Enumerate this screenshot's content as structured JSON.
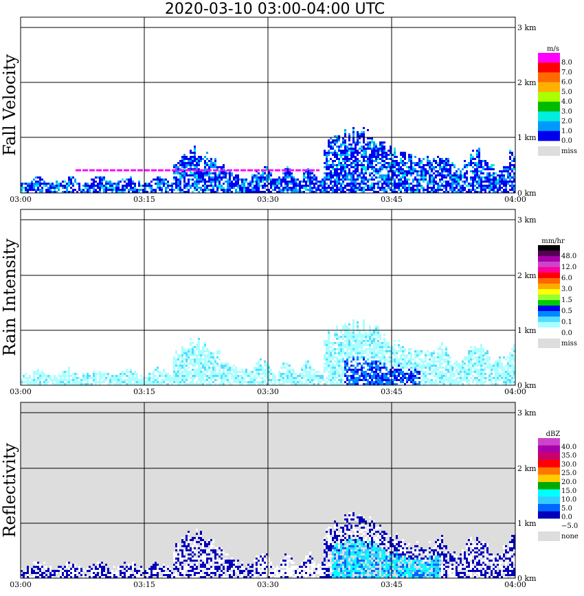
{
  "title": "2020-03-10   03:00-04:00 UTC",
  "chart_data": [
    {
      "type": "heatmap",
      "panel_title": "Fall Velocity",
      "x_tick_labels": [
        "03:00",
        "03:15",
        "03:30",
        "03:45",
        "04:00"
      ],
      "y_tick_labels": [
        "0 km",
        "1 km",
        "2 km",
        "3 km"
      ],
      "xlim": [
        "03:00",
        "04:00"
      ],
      "ylim_km": [
        0,
        3.1
      ],
      "grid": true,
      "colorbar": {
        "unit": "m/s",
        "levels": [
          "8.0",
          "7.0",
          "6.0",
          "5.0",
          "4.0",
          "3.0",
          "2.0",
          "1.0",
          "0.0"
        ],
        "colors": [
          "#ff00ff",
          "#ff0000",
          "#ff6a00",
          "#ffb000",
          "#aaff00",
          "#00bb00",
          "#00eedd",
          "#0099ff",
          "#0000ee"
        ],
        "missing_label": "miss",
        "missing_color": "#dddddd"
      },
      "background": "#ffffff"
    },
    {
      "type": "heatmap",
      "panel_title": "Rain Intensity",
      "x_tick_labels": [
        "03:00",
        "03:15",
        "03:30",
        "03:45",
        "04:00"
      ],
      "y_tick_labels": [
        "0 km",
        "1 km",
        "2 km",
        "3 km"
      ],
      "xlim": [
        "03:00",
        "04:00"
      ],
      "ylim_km": [
        0,
        3.1
      ],
      "grid": true,
      "colorbar": {
        "unit": "mm/hr",
        "levels": [
          "48.0",
          "12.0",
          "6.0",
          "3.0",
          "1.5",
          "0.5",
          "0.1",
          "0.0"
        ],
        "colors": [
          "#000000",
          "#550055",
          "#aa00aa",
          "#cc44cc",
          "#ff0099",
          "#ff0000",
          "#ff6600",
          "#ffaa00",
          "#ffff00",
          "#99ff33",
          "#00cc00",
          "#0000ee",
          "#0088ff",
          "#55ddff",
          "#aaffff",
          "#ffffff"
        ],
        "missing_label": "miss",
        "missing_color": "#dddddd"
      },
      "background": "#ffffff"
    },
    {
      "type": "heatmap",
      "panel_title": "Reflectivity",
      "x_tick_labels": [
        "03:00",
        "03:15",
        "03:30",
        "03:45",
        "04:00"
      ],
      "y_tick_labels": [
        "0 km",
        "1 km",
        "2 km",
        "3 km"
      ],
      "xlim": [
        "03:00",
        "04:00"
      ],
      "ylim_km": [
        0,
        3.1
      ],
      "grid": true,
      "colorbar": {
        "unit": "dBZ",
        "levels": [
          "40.0",
          "35.0",
          "30.0",
          "25.0",
          "20.0",
          "15.0",
          "10.0",
          "5.0",
          "0.0",
          "−5.0"
        ],
        "colors": [
          "#cc44cc",
          "#aa00aa",
          "#cc0066",
          "#ff0000",
          "#ff7700",
          "#ffcc00",
          "#00aa00",
          "#00ffff",
          "#33ccff",
          "#0066ff",
          "#0000bb",
          "#ffffff"
        ],
        "missing_label": "none",
        "missing_color": "#dddddd"
      },
      "background": "#dddddd"
    }
  ]
}
